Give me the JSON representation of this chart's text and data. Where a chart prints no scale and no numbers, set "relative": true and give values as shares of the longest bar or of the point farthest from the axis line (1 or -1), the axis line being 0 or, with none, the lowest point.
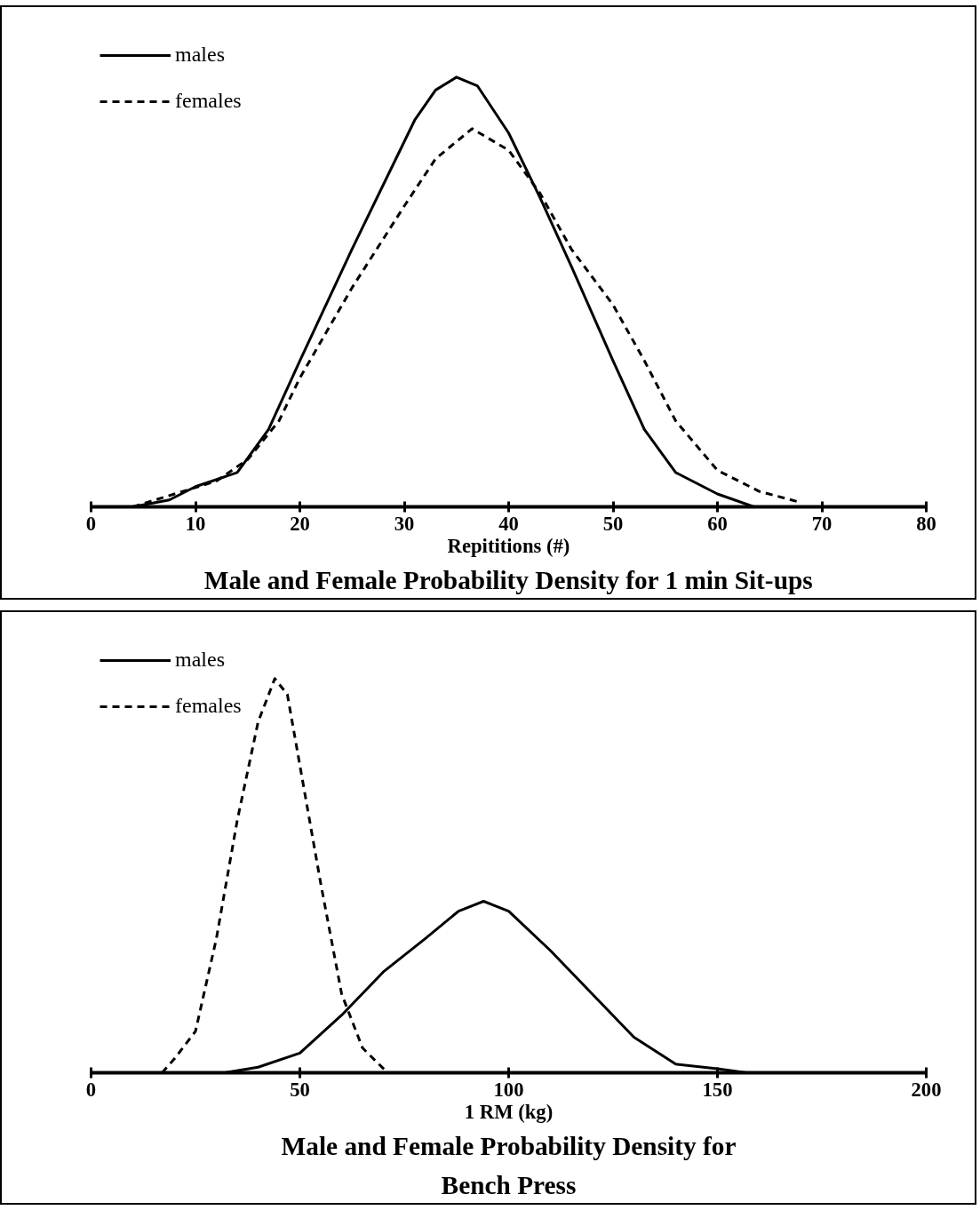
{
  "chart_data": [
    {
      "type": "line",
      "relative": true,
      "title": "Male and Female Probability Density for 1 min Sit-ups",
      "xlabel": "Repititions (#)",
      "xlim": [
        0,
        80
      ],
      "xticks": [
        0,
        10,
        20,
        30,
        40,
        50,
        60,
        70,
        80
      ],
      "grid": false,
      "legend": "top left",
      "tick_labels": "x",
      "series": [
        {
          "name": "males",
          "color": "#000000",
          "line_style": "solid",
          "x": [
            4,
            7.5,
            10,
            14,
            17,
            20,
            25,
            28,
            31,
            33,
            35,
            37,
            40,
            43,
            46,
            50,
            53,
            56,
            60,
            63.5
          ],
          "values": [
            0,
            0.016,
            0.047,
            0.08,
            0.18,
            0.34,
            0.6,
            0.75,
            0.9,
            0.97,
            1,
            0.98,
            0.87,
            0.72,
            0.56,
            0.34,
            0.18,
            0.08,
            0.03,
            0
          ]
        },
        {
          "name": "females",
          "color": "#000000",
          "line_style": "dashed",
          "x": [
            4,
            8,
            12,
            15,
            18,
            20,
            25,
            30,
            33,
            36.5,
            40,
            43,
            46,
            50,
            53,
            56,
            60,
            64,
            68
          ],
          "values": [
            0,
            0.03,
            0.06,
            0.11,
            0.2,
            0.3,
            0.51,
            0.7,
            0.81,
            0.88,
            0.83,
            0.73,
            0.6,
            0.47,
            0.34,
            0.2,
            0.085,
            0.036,
            0.01
          ]
        }
      ]
    },
    {
      "type": "line",
      "relative": true,
      "title": "Male and Female Probability Density for\nBench Press",
      "xlabel": "1 RM (kg)",
      "xlim": [
        0,
        200
      ],
      "xticks": [
        0,
        50,
        100,
        150,
        200
      ],
      "grid": false,
      "legend": "top left",
      "tick_labels": "x",
      "series": [
        {
          "name": "males",
          "color": "#000000",
          "line_style": "solid",
          "x": [
            32,
            40,
            50,
            60,
            70,
            80,
            88,
            94,
            100,
            110,
            120,
            130,
            140,
            150,
            157
          ],
          "values": [
            0,
            0.014,
            0.05,
            0.146,
            0.256,
            0.34,
            0.41,
            0.435,
            0.41,
            0.31,
            0.2,
            0.09,
            0.022,
            0.01,
            0
          ]
        },
        {
          "name": "females",
          "color": "#000000",
          "line_style": "dashed",
          "x": [
            17,
            20,
            25,
            30,
            35,
            40,
            44,
            47,
            50,
            55,
            60,
            65,
            71
          ],
          "values": [
            0,
            0.036,
            0.105,
            0.34,
            0.64,
            0.89,
            1,
            0.96,
            0.78,
            0.48,
            0.2,
            0.063,
            0
          ]
        }
      ]
    }
  ]
}
